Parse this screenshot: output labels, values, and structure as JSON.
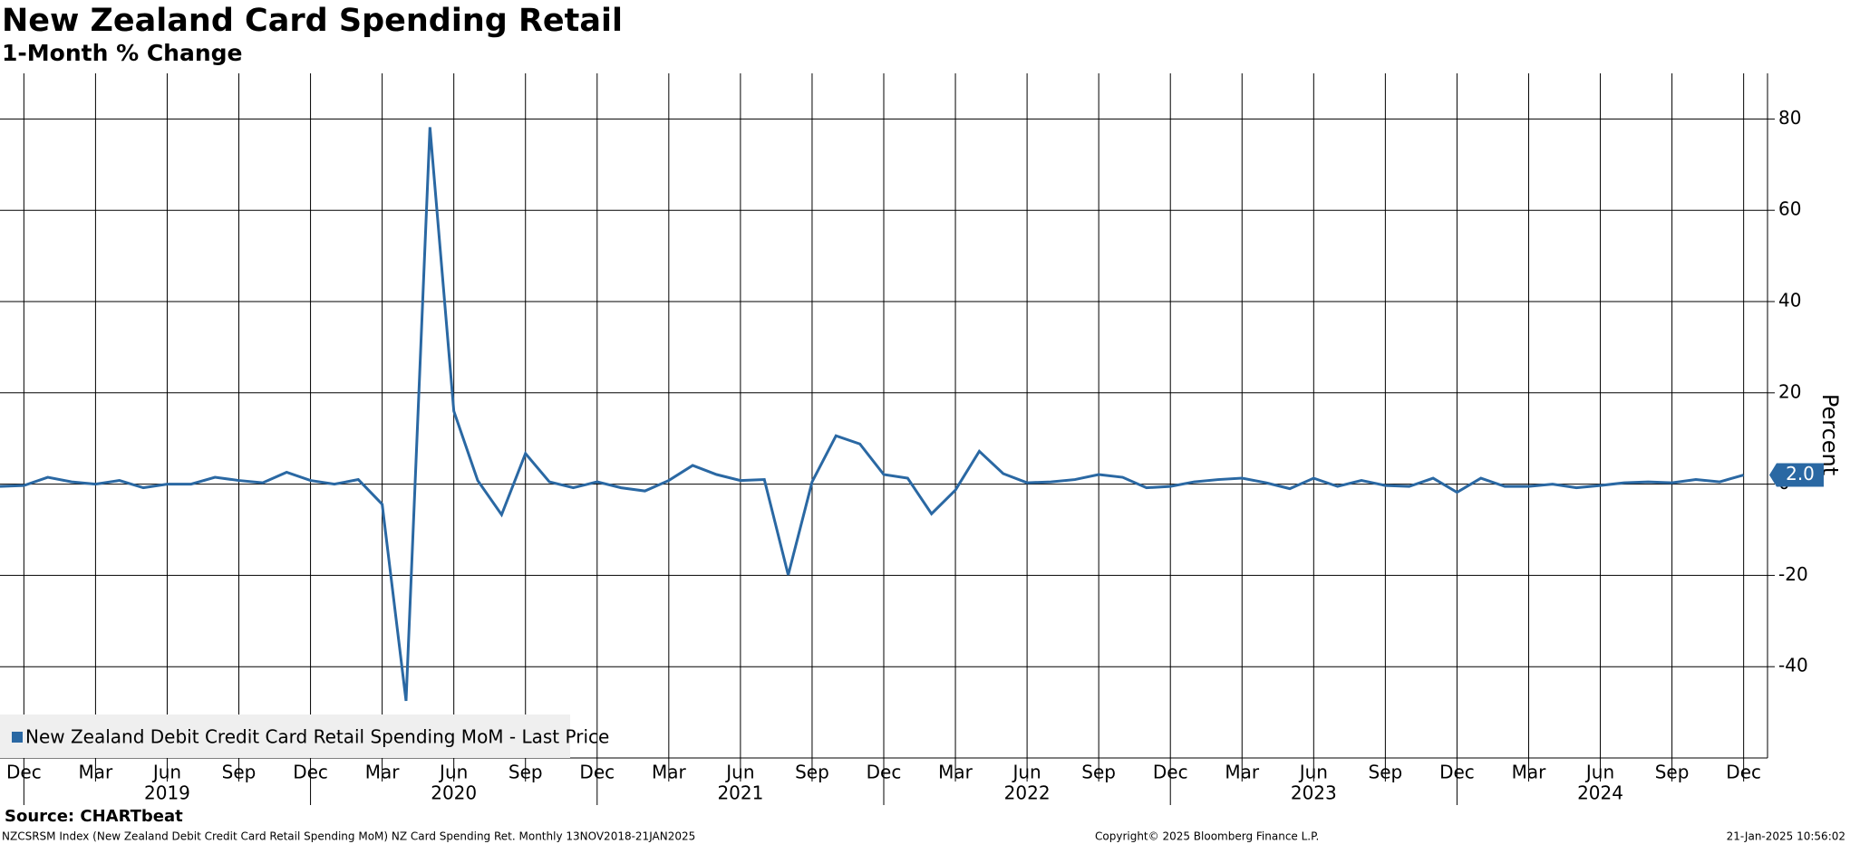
{
  "chart_data": {
    "type": "line",
    "title": "New Zealand Card Spending Retail",
    "subtitle": "1-Month % Change",
    "y_label": "Percent",
    "x": [
      "2018-11",
      "2018-12",
      "2019-01",
      "2019-02",
      "2019-03",
      "2019-04",
      "2019-05",
      "2019-06",
      "2019-07",
      "2019-08",
      "2019-09",
      "2019-10",
      "2019-11",
      "2019-12",
      "2020-01",
      "2020-02",
      "2020-03",
      "2020-04",
      "2020-05",
      "2020-06",
      "2020-07",
      "2020-08",
      "2020-09",
      "2020-10",
      "2020-11",
      "2020-12",
      "2021-01",
      "2021-02",
      "2021-03",
      "2021-04",
      "2021-05",
      "2021-06",
      "2021-07",
      "2021-08",
      "2021-09",
      "2021-10",
      "2021-11",
      "2021-12",
      "2022-01",
      "2022-02",
      "2022-03",
      "2022-04",
      "2022-05",
      "2022-06",
      "2022-07",
      "2022-08",
      "2022-09",
      "2022-10",
      "2022-11",
      "2022-12",
      "2023-01",
      "2023-02",
      "2023-03",
      "2023-04",
      "2023-05",
      "2023-06",
      "2023-07",
      "2023-08",
      "2023-09",
      "2023-10",
      "2023-11",
      "2023-12",
      "2024-01",
      "2024-02",
      "2024-03",
      "2024-04",
      "2024-05",
      "2024-06",
      "2024-07",
      "2024-08",
      "2024-09",
      "2024-10",
      "2024-11",
      "2024-12"
    ],
    "series": [
      {
        "name": "New Zealand Debit Credit Card Retail Spending MoM - Last Price",
        "color": "#2a68a3",
        "values": [
          -0.5,
          -0.3,
          1.5,
          0.5,
          0,
          0.8,
          -0.8,
          0,
          0,
          1.5,
          0.8,
          0.3,
          2.6,
          0.8,
          0,
          1,
          -4.4,
          -47.5,
          78.2,
          16,
          0.8,
          -6.7,
          6.7,
          0.5,
          -0.8,
          0.5,
          -0.8,
          -1.5,
          0.8,
          4.1,
          2.1,
          0.8,
          1,
          -19.9,
          0.5,
          10.6,
          8.8,
          2.1,
          1.3,
          -6.5,
          -1.3,
          7.2,
          2.3,
          0.3,
          0.5,
          1,
          2.1,
          1.5,
          -0.8,
          -0.5,
          0.5,
          1,
          1.3,
          0.3,
          -1,
          1.3,
          -0.5,
          0.8,
          -0.3,
          -0.5,
          1.3,
          -1.8,
          1.3,
          -0.5,
          -0.5,
          0,
          -0.8,
          -0.3,
          0.3,
          0.5,
          0.3,
          1,
          0.5,
          2.0
        ],
        "last_value_label": "2.0"
      }
    ],
    "xlim": [
      "2018-11",
      "2024-12"
    ],
    "xticks": [
      {
        "value": "2018-12",
        "label": "Dec"
      },
      {
        "value": "2019-03",
        "label": "Mar"
      },
      {
        "value": "2019-06",
        "label": "Jun"
      },
      {
        "value": "2019-09",
        "label": "Sep"
      },
      {
        "value": "2019-12",
        "label": "Dec"
      },
      {
        "value": "2020-03",
        "label": "Mar"
      },
      {
        "value": "2020-06",
        "label": "Jun"
      },
      {
        "value": "2020-09",
        "label": "Sep"
      },
      {
        "value": "2020-12",
        "label": "Dec"
      },
      {
        "value": "2021-03",
        "label": "Mar"
      },
      {
        "value": "2021-06",
        "label": "Jun"
      },
      {
        "value": "2021-09",
        "label": "Sep"
      },
      {
        "value": "2021-12",
        "label": "Dec"
      },
      {
        "value": "2022-03",
        "label": "Mar"
      },
      {
        "value": "2022-06",
        "label": "Jun"
      },
      {
        "value": "2022-09",
        "label": "Sep"
      },
      {
        "value": "2022-12",
        "label": "Dec"
      },
      {
        "value": "2023-03",
        "label": "Mar"
      },
      {
        "value": "2023-06",
        "label": "Jun"
      },
      {
        "value": "2023-09",
        "label": "Sep"
      },
      {
        "value": "2023-12",
        "label": "Dec"
      },
      {
        "value": "2024-03",
        "label": "Mar"
      },
      {
        "value": "2024-06",
        "label": "Jun"
      },
      {
        "value": "2024-09",
        "label": "Sep"
      },
      {
        "value": "2024-12",
        "label": "Dec"
      }
    ],
    "year_ticks": [
      "2019",
      "2020",
      "2021",
      "2022",
      "2023",
      "2024"
    ],
    "ylim": [
      -60,
      90
    ],
    "yticks": [
      -40,
      -20,
      0,
      20,
      40,
      60,
      80
    ],
    "grid": true,
    "legend": "bottom-left",
    "source": "Source: CHARTbeat",
    "footnote": "NZCSRSM Index (New Zealand Debit Credit Card Retail Spending MoM) NZ Card Spending Ret.  Monthly 13NOV2018-21JAN2025",
    "copyright": "Copyright© 2025 Bloomberg Finance L.P.",
    "timestamp": "21-Jan-2025 10:56:02"
  }
}
